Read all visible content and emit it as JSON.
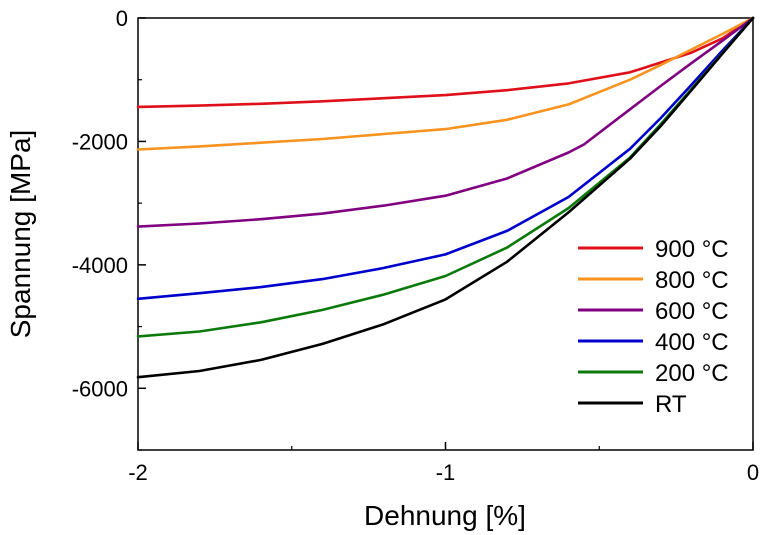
{
  "chart_data": {
    "type": "line",
    "title": "",
    "xlabel": "Dehnung [%]",
    "ylabel": "Spannung [MPa]",
    "xlim": [
      -2,
      0
    ],
    "ylim": [
      -7000,
      0
    ],
    "xticks": [
      -2,
      -1,
      0
    ],
    "yticks": [
      0,
      -2000,
      -4000,
      -6000
    ],
    "xtick_labels": [
      "-2",
      "-1",
      "0"
    ],
    "ytick_labels": [
      "0",
      "-2000",
      "-4000",
      "-6000"
    ],
    "grid": false,
    "legend_position": "lower-right",
    "series": [
      {
        "name": "900 °C",
        "color": "#e0101a",
        "points": [
          [
            -2.0,
            -1440
          ],
          [
            -1.8,
            -1420
          ],
          [
            -1.6,
            -1390
          ],
          [
            -1.4,
            -1350
          ],
          [
            -1.2,
            -1300
          ],
          [
            -1.0,
            -1250
          ],
          [
            -0.8,
            -1170
          ],
          [
            -0.6,
            -1060
          ],
          [
            -0.4,
            -880
          ],
          [
            -0.2,
            -560
          ],
          [
            -0.1,
            -330
          ],
          [
            0.0,
            0
          ]
        ]
      },
      {
        "name": "800 °C",
        "color": "#f7931e",
        "points": [
          [
            -2.0,
            -2130
          ],
          [
            -1.8,
            -2080
          ],
          [
            -1.6,
            -2020
          ],
          [
            -1.4,
            -1960
          ],
          [
            -1.2,
            -1880
          ],
          [
            -1.0,
            -1800
          ],
          [
            -0.8,
            -1650
          ],
          [
            -0.6,
            -1400
          ],
          [
            -0.4,
            -1000
          ],
          [
            -0.3,
            -760
          ],
          [
            -0.2,
            -510
          ],
          [
            -0.1,
            -260
          ],
          [
            0.0,
            0
          ]
        ]
      },
      {
        "name": "600 °C",
        "color": "#800080",
        "points": [
          [
            -2.0,
            -3380
          ],
          [
            -1.8,
            -3330
          ],
          [
            -1.6,
            -3260
          ],
          [
            -1.4,
            -3170
          ],
          [
            -1.2,
            -3040
          ],
          [
            -1.0,
            -2880
          ],
          [
            -0.8,
            -2600
          ],
          [
            -0.6,
            -2180
          ],
          [
            -0.55,
            -2050
          ],
          [
            -0.4,
            -1480
          ],
          [
            -0.3,
            -1100
          ],
          [
            -0.2,
            -730
          ],
          [
            -0.1,
            -370
          ],
          [
            0.0,
            0
          ]
        ]
      },
      {
        "name": "400 °C",
        "color": "#0000cc",
        "points": [
          [
            -2.0,
            -4550
          ],
          [
            -1.8,
            -4460
          ],
          [
            -1.6,
            -4360
          ],
          [
            -1.4,
            -4230
          ],
          [
            -1.2,
            -4050
          ],
          [
            -1.0,
            -3830
          ],
          [
            -0.8,
            -3450
          ],
          [
            -0.6,
            -2900
          ],
          [
            -0.4,
            -2120
          ],
          [
            -0.3,
            -1620
          ],
          [
            -0.2,
            -1080
          ],
          [
            -0.1,
            -530
          ],
          [
            0.0,
            0
          ]
        ]
      },
      {
        "name": "200 °C",
        "color": "#0b7a0b",
        "points": [
          [
            -2.0,
            -5160
          ],
          [
            -1.8,
            -5080
          ],
          [
            -1.6,
            -4930
          ],
          [
            -1.4,
            -4730
          ],
          [
            -1.2,
            -4480
          ],
          [
            -1.0,
            -4180
          ],
          [
            -0.8,
            -3720
          ],
          [
            -0.6,
            -3080
          ],
          [
            -0.4,
            -2260
          ],
          [
            -0.3,
            -1720
          ],
          [
            -0.2,
            -1150
          ],
          [
            -0.1,
            -570
          ],
          [
            0.0,
            0
          ]
        ]
      },
      {
        "name": "RT",
        "color": "#000000",
        "points": [
          [
            -2.0,
            -5820
          ],
          [
            -1.8,
            -5720
          ],
          [
            -1.6,
            -5540
          ],
          [
            -1.4,
            -5280
          ],
          [
            -1.2,
            -4960
          ],
          [
            -1.0,
            -4560
          ],
          [
            -0.8,
            -3950
          ],
          [
            -0.6,
            -3150
          ],
          [
            -0.4,
            -2280
          ],
          [
            -0.3,
            -1750
          ],
          [
            -0.2,
            -1170
          ],
          [
            -0.1,
            -580
          ],
          [
            0.0,
            0
          ]
        ]
      }
    ]
  }
}
